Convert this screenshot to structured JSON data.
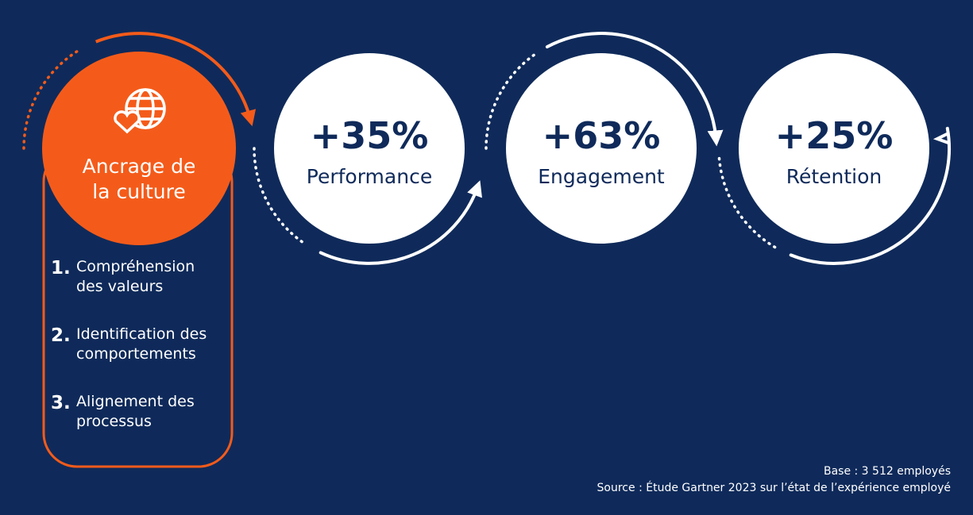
{
  "culture": {
    "title_lines": [
      "Ancrage de",
      "la culture"
    ],
    "items": [
      {
        "number": "1.",
        "lines": [
          "Compréhension",
          "des valeurs"
        ]
      },
      {
        "number": "2.",
        "lines": [
          "Identification des",
          "comportements"
        ]
      },
      {
        "number": "3.",
        "lines": [
          "Alignement des",
          "processus"
        ]
      }
    ]
  },
  "results": [
    {
      "value": "+35%",
      "label": "Performance"
    },
    {
      "value": "+63%",
      "label": "Engagement"
    },
    {
      "value": "+25%",
      "label": "Rétention"
    }
  ],
  "footer": {
    "base": "Base : 3 512 employés",
    "source": "Source : Étude Gartner 2023 sur l’état de l’expérience employé"
  }
}
